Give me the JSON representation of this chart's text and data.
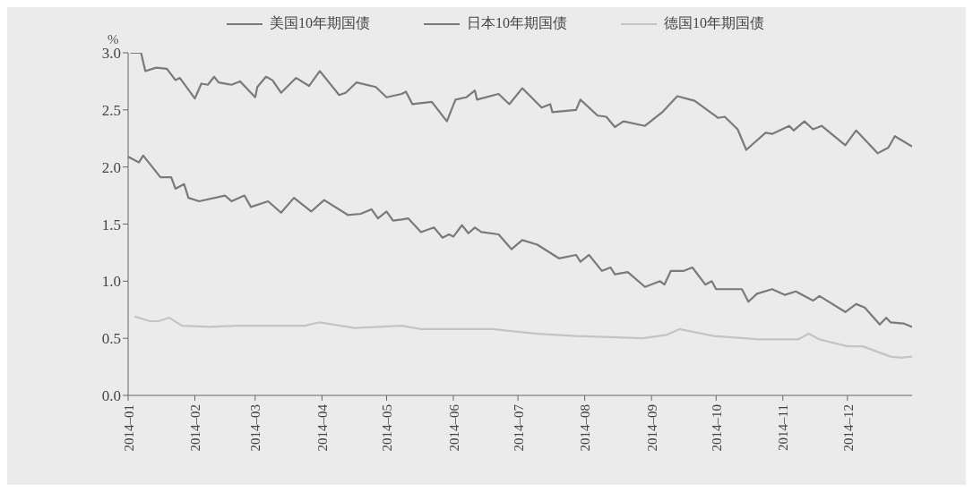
{
  "chart_data": {
    "type": "line",
    "ylabel": "%",
    "legend": "top",
    "grid": false,
    "marker": "none",
    "line_style": "solid",
    "xlim": [
      "2014-01-01",
      "2014-12-31"
    ],
    "xticks": [
      {
        "value": "2014-01-01",
        "label": "2014–01"
      },
      {
        "value": "2014-02-01",
        "label": "2014–02"
      },
      {
        "value": "2014-03-01",
        "label": "2014–03"
      },
      {
        "value": "2014-04-01",
        "label": "2014–04"
      },
      {
        "value": "2014-05-01",
        "label": "2014–05"
      },
      {
        "value": "2014-06-01",
        "label": "2014–06"
      },
      {
        "value": "2014-07-01",
        "label": "2014–07"
      },
      {
        "value": "2014-08-01",
        "label": "2014–08"
      },
      {
        "value": "2014-09-01",
        "label": "2014–09"
      },
      {
        "value": "2014-10-01",
        "label": "2014–10"
      },
      {
        "value": "2014-11-01",
        "label": "2014–11"
      },
      {
        "value": "2014-12-01",
        "label": "2014–12"
      }
    ],
    "ylim": [
      0,
      3
    ],
    "yticks": [
      {
        "value": 0,
        "label": "0.0"
      },
      {
        "value": 0.5,
        "label": "0.5"
      },
      {
        "value": 1,
        "label": "1.0"
      },
      {
        "value": 1.5,
        "label": "1.5"
      },
      {
        "value": 2,
        "label": "2.0"
      },
      {
        "value": 2.5,
        "label": "2.5"
      },
      {
        "value": 3,
        "label": "3.0"
      }
    ],
    "series": [
      {
        "name": "美国10年期国债",
        "color": "#7a7a7a",
        "x": [
          "2014-01-02",
          "2014-01-07",
          "2014-01-09",
          "2014-01-14",
          "2014-01-19",
          "2014-01-23",
          "2014-01-25",
          "2014-02-01",
          "2014-02-04",
          "2014-02-07",
          "2014-02-10",
          "2014-02-12",
          "2014-02-18",
          "2014-02-22",
          "2014-03-01",
          "2014-03-02",
          "2014-03-06",
          "2014-03-09",
          "2014-03-13",
          "2014-03-20",
          "2014-03-26",
          "2014-03-31",
          "2014-04-09",
          "2014-04-12",
          "2014-04-17",
          "2014-04-26",
          "2014-05-01",
          "2014-05-08",
          "2014-05-10",
          "2014-05-13",
          "2014-05-22",
          "2014-05-29",
          "2014-06-02",
          "2014-06-07",
          "2014-06-11",
          "2014-06-12",
          "2014-06-22",
          "2014-06-27",
          "2014-07-03",
          "2014-07-12",
          "2014-07-16",
          "2014-07-17",
          "2014-07-28",
          "2014-07-30",
          "2014-08-07",
          "2014-08-11",
          "2014-08-15",
          "2014-08-19",
          "2014-08-29",
          "2014-09-06",
          "2014-09-13",
          "2014-09-21",
          "2014-10-02",
          "2014-10-05",
          "2014-10-11",
          "2014-10-15",
          "2014-10-24",
          "2014-10-27",
          "2014-11-04",
          "2014-11-06",
          "2014-11-11",
          "2014-11-15",
          "2014-11-19",
          "2014-11-30",
          "2014-12-05",
          "2014-12-15",
          "2014-12-20",
          "2014-12-23",
          "2014-12-31"
        ],
        "values": [
          3.0,
          3.0,
          2.84,
          2.87,
          2.86,
          2.76,
          2.78,
          2.6,
          2.73,
          2.72,
          2.79,
          2.74,
          2.72,
          2.75,
          2.61,
          2.7,
          2.79,
          2.76,
          2.65,
          2.78,
          2.71,
          2.84,
          2.63,
          2.65,
          2.74,
          2.7,
          2.61,
          2.64,
          2.66,
          2.55,
          2.57,
          2.4,
          2.59,
          2.61,
          2.67,
          2.59,
          2.64,
          2.55,
          2.69,
          2.52,
          2.55,
          2.48,
          2.5,
          2.59,
          2.45,
          2.44,
          2.35,
          2.4,
          2.36,
          2.48,
          2.62,
          2.58,
          2.43,
          2.44,
          2.33,
          2.15,
          2.3,
          2.29,
          2.36,
          2.32,
          2.4,
          2.33,
          2.36,
          2.19,
          2.32,
          2.12,
          2.17,
          2.27,
          2.18
        ]
      },
      {
        "name": "日本10年期国债",
        "color": "#7a7a7a",
        "x": [
          "2014-01-01",
          "2014-01-06",
          "2014-01-08",
          "2014-01-16",
          "2014-01-21",
          "2014-01-23",
          "2014-01-27",
          "2014-01-29",
          "2014-02-03",
          "2014-02-15",
          "2014-02-18",
          "2014-02-24",
          "2014-02-27",
          "2014-03-07",
          "2014-03-13",
          "2014-03-19",
          "2014-03-27",
          "2014-04-02",
          "2014-04-13",
          "2014-04-19",
          "2014-04-24",
          "2014-04-27",
          "2014-05-01",
          "2014-05-04",
          "2014-05-08",
          "2014-05-11",
          "2014-05-17",
          "2014-05-23",
          "2014-05-27",
          "2014-05-30",
          "2014-06-01",
          "2014-06-05",
          "2014-06-08",
          "2014-06-11",
          "2014-06-14",
          "2014-06-22",
          "2014-06-28",
          "2014-07-03",
          "2014-07-10",
          "2014-07-20",
          "2014-07-28",
          "2014-07-30",
          "2014-08-03",
          "2014-08-09",
          "2014-08-13",
          "2014-08-15",
          "2014-08-21",
          "2014-08-29",
          "2014-09-05",
          "2014-09-07",
          "2014-09-10",
          "2014-09-16",
          "2014-09-20",
          "2014-09-26",
          "2014-09-29",
          "2014-10-01",
          "2014-10-13",
          "2014-10-16",
          "2014-10-20",
          "2014-10-27",
          "2014-11-02",
          "2014-11-07",
          "2014-11-15",
          "2014-11-18",
          "2014-11-30",
          "2014-12-05",
          "2014-12-09",
          "2014-12-16",
          "2014-12-19",
          "2014-12-21",
          "2014-12-27",
          "2014-12-31"
        ],
        "values": [
          2.09,
          2.04,
          2.1,
          1.91,
          1.91,
          1.81,
          1.85,
          1.73,
          1.7,
          1.75,
          1.7,
          1.75,
          1.65,
          1.7,
          1.6,
          1.73,
          1.61,
          1.71,
          1.58,
          1.59,
          1.63,
          1.55,
          1.61,
          1.53,
          1.54,
          1.55,
          1.43,
          1.47,
          1.38,
          1.41,
          1.39,
          1.49,
          1.42,
          1.47,
          1.43,
          1.41,
          1.28,
          1.36,
          1.32,
          1.2,
          1.23,
          1.17,
          1.23,
          1.09,
          1.12,
          1.06,
          1.08,
          0.95,
          1.0,
          0.97,
          1.09,
          1.09,
          1.12,
          0.97,
          1.0,
          0.93,
          0.93,
          0.82,
          0.89,
          0.93,
          0.88,
          0.91,
          0.83,
          0.87,
          0.73,
          0.8,
          0.77,
          0.62,
          0.68,
          0.64,
          0.63,
          0.6
        ]
      },
      {
        "name": "德国10年期国债",
        "color": "#c4c4c4",
        "x": [
          "2014-01-04",
          "2014-01-11",
          "2014-01-15",
          "2014-01-20",
          "2014-01-26",
          "2014-02-08",
          "2014-02-20",
          "2014-03-24",
          "2014-03-31",
          "2014-04-16",
          "2014-05-08",
          "2014-05-17",
          "2014-06-19",
          "2014-07-10",
          "2014-07-28",
          "2014-08-28",
          "2014-09-08",
          "2014-09-14",
          "2014-09-30",
          "2014-10-21",
          "2014-11-08",
          "2014-11-13",
          "2014-11-18",
          "2014-12-01",
          "2014-12-08",
          "2014-12-21",
          "2014-12-26",
          "2014-12-31"
        ],
        "values": [
          0.69,
          0.65,
          0.65,
          0.68,
          0.61,
          0.6,
          0.61,
          0.61,
          0.64,
          0.59,
          0.61,
          0.58,
          0.58,
          0.54,
          0.52,
          0.5,
          0.53,
          0.58,
          0.52,
          0.49,
          0.49,
          0.54,
          0.49,
          0.43,
          0.43,
          0.34,
          0.33,
          0.34
        ]
      }
    ]
  }
}
